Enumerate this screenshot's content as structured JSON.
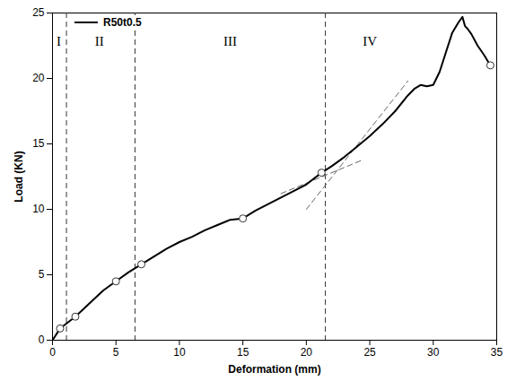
{
  "chart_data": {
    "type": "line",
    "x_label": "Deformation (mm)",
    "y_label": "Load (KN)",
    "xlim": [
      0,
      35
    ],
    "xticks": [
      0,
      5,
      10,
      15,
      20,
      25,
      30,
      35
    ],
    "ylim": [
      0,
      25
    ],
    "yticks": [
      0,
      5,
      10,
      15,
      20,
      25
    ],
    "legend": "top-left",
    "x": [
      0,
      0.6,
      1,
      1.8,
      3,
      4,
      5,
      6,
      7,
      8,
      9,
      10,
      11,
      12,
      13,
      14,
      15,
      16,
      17,
      18,
      19,
      20,
      21.2,
      22,
      23,
      24,
      25,
      26,
      27,
      28,
      28.5,
      29,
      29.5,
      30,
      30.5,
      31,
      31.5,
      32,
      32.3,
      32.5,
      32.7,
      33,
      33.5,
      34,
      34.5
    ],
    "series": [
      {
        "name": "R50t0.5",
        "color": "#000000",
        "values": [
          0,
          0.9,
          1.2,
          1.8,
          2.9,
          3.8,
          4.5,
          5.2,
          5.8,
          6.4,
          7.0,
          7.5,
          7.9,
          8.4,
          8.8,
          9.2,
          9.3,
          9.9,
          10.4,
          10.9,
          11.4,
          11.9,
          12.8,
          13.3,
          14.0,
          14.8,
          15.6,
          16.5,
          17.5,
          18.7,
          19.2,
          19.5,
          19.4,
          19.5,
          20.5,
          22.0,
          23.5,
          24.3,
          24.7,
          24.0,
          23.8,
          23.4,
          22.5,
          21.8,
          21.0
        ]
      }
    ],
    "highlighted_points": {
      "x": [
        0.6,
        1.8,
        5,
        7,
        15,
        21.2,
        34.5
      ],
      "y": [
        0.9,
        1.8,
        4.5,
        5.8,
        9.3,
        12.8,
        21.0
      ],
      "marker": "circle"
    },
    "vlines": [
      1.1,
      6.5,
      21.5
    ],
    "line_style": "dashed",
    "reference_lines": [
      {
        "x": [
          18,
          24.5
        ],
        "y": [
          11.2,
          13.8
        ]
      },
      {
        "x": [
          20,
          28
        ],
        "y": [
          10,
          19.8
        ]
      }
    ],
    "annotations": [
      {
        "text": "I",
        "x": 0.5,
        "y": 22.8
      },
      {
        "text": "II",
        "x": 3.7,
        "y": 22.8
      },
      {
        "text": "III",
        "x": 14,
        "y": 22.8
      },
      {
        "text": "IV",
        "x": 25,
        "y": 22.8
      }
    ]
  }
}
